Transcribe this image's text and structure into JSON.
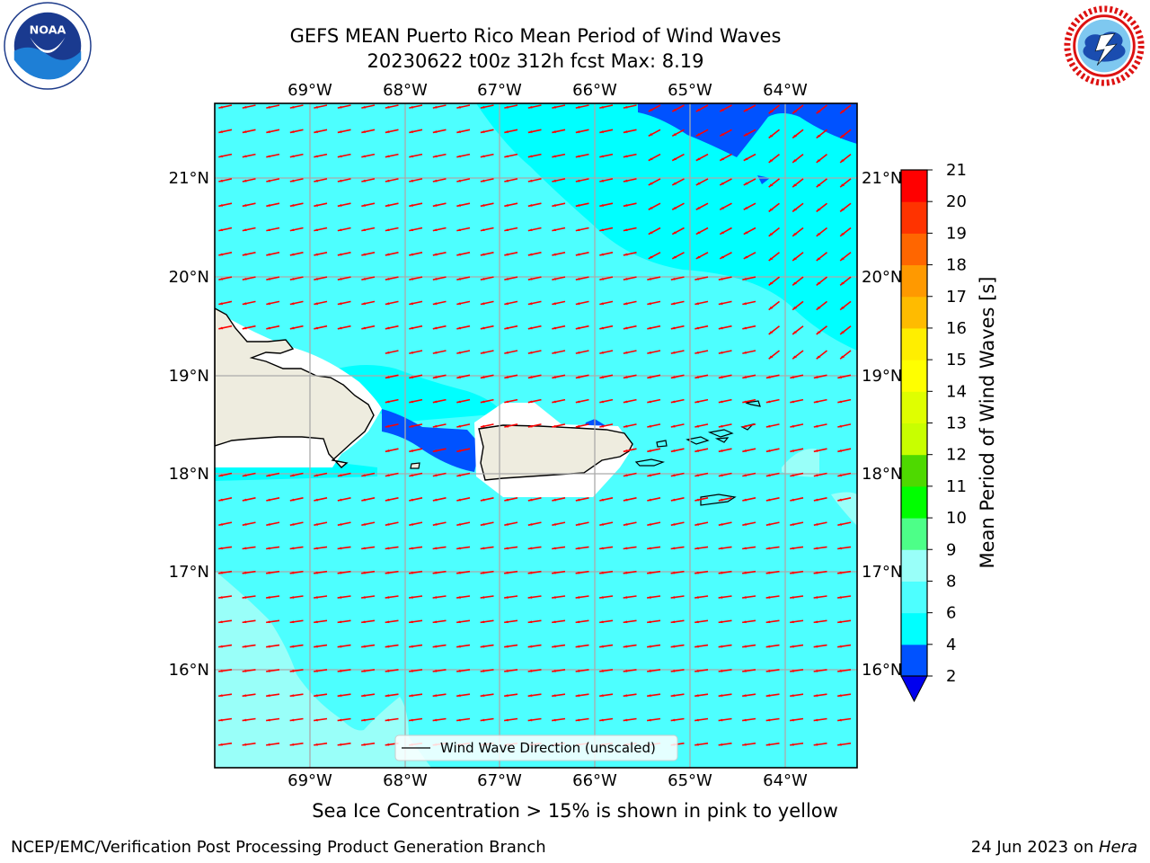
{
  "header": {
    "title_line1": "GEFS MEAN Puerto Rico Mean Period of Wind Waves",
    "title_line2": "20230622 t00z 312h fcst   Max: 8.19"
  },
  "logos": {
    "left": "NOAA",
    "right": "NATIONAL WEATHER SERVICE"
  },
  "map": {
    "lon_labels": [
      "69°W",
      "68°W",
      "67°W",
      "66°W",
      "65°W",
      "64°W"
    ],
    "lat_labels": [
      "21°N",
      "20°N",
      "19°N",
      "18°N",
      "17°N",
      "16°N"
    ],
    "legend_text": "Wind Wave Direction (unscaled)",
    "arrow_color": "#ff0000",
    "ocean_color": "#4dffff",
    "land_color": "#eeecdf"
  },
  "colorbar": {
    "label": "Mean Period of Wind Waves [s]",
    "ticks": [
      "2",
      "4",
      "6",
      "8",
      "9",
      "10",
      "11",
      "12",
      "13",
      "14",
      "15",
      "16",
      "17",
      "18",
      "19",
      "20",
      "21"
    ],
    "colors": [
      "#0052ff",
      "#00ffff",
      "#4dffff",
      "#99fff9",
      "#4dff88",
      "#00ff00",
      "#4ed900",
      "#c8ff00",
      "#dfff00",
      "#ffff00",
      "#ffee00",
      "#ffbb00",
      "#ff9900",
      "#ff6600",
      "#ff3300",
      "#ff0000"
    ],
    "under_color": "#0000ee"
  },
  "note": "Sea Ice Concentration > 15% is shown in pink to yellow",
  "footer": {
    "left": "NCEP/EMC/Verification Post Processing Product Generation Branch",
    "right_date": "24 Jun 2023 on ",
    "right_host": "Hera"
  }
}
